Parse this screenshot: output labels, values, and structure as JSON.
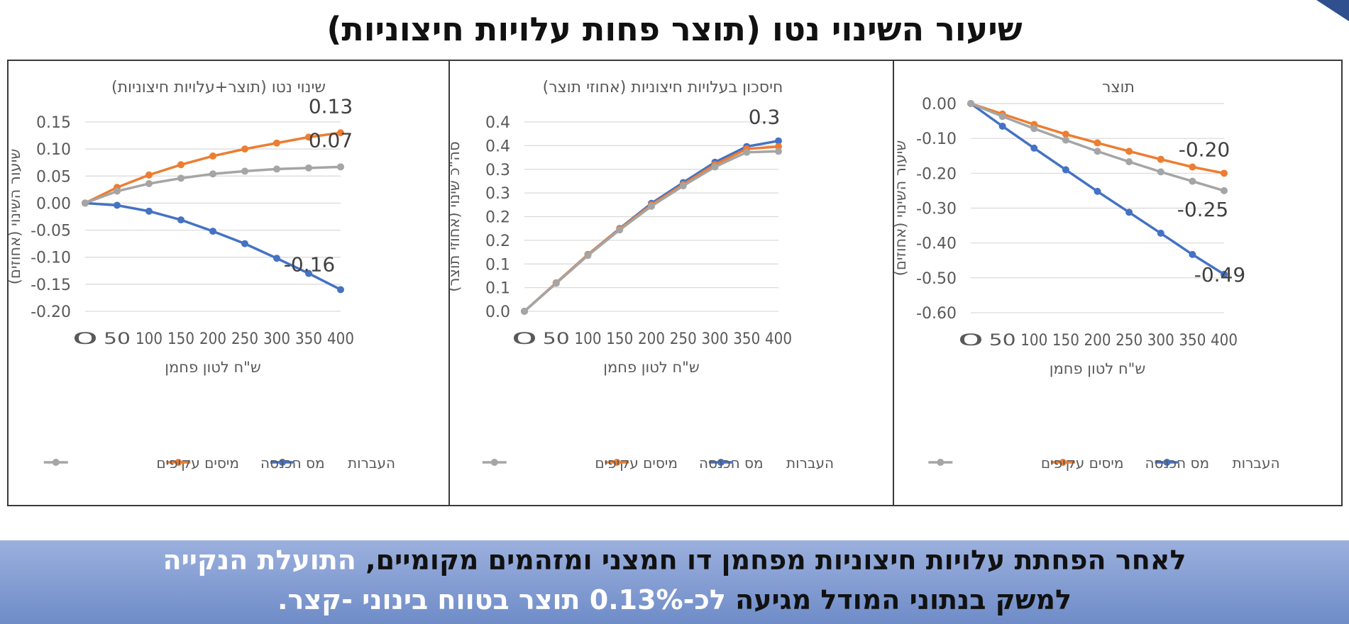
{
  "page_title": "שיעור השינוי נטו (תוצר פחות עלויות חיצוניות)",
  "colors": {
    "transfers": "#4472c4",
    "income_tax": "#ed7d31",
    "indirect_taxes": "#a5a5a5",
    "frame": "#3a3a3a",
    "banner": "#7f98cf"
  },
  "chart_data": [
    {
      "type": "line",
      "title": "תוצר",
      "xlabel": "ש\"ח לטון פחמן",
      "ylabel": "שיעור השינוי (אחוזים)",
      "x": [
        0,
        50,
        100,
        150,
        200,
        250,
        300,
        350,
        400
      ],
      "x_tick_labels": [
        "0",
        "50",
        "100",
        "150",
        "200",
        "250",
        "300",
        "350",
        "400"
      ],
      "ylim": [
        -0.6,
        0.0
      ],
      "y_ticks": [
        0.0,
        -0.1,
        -0.2,
        -0.3,
        -0.4,
        -0.5,
        -0.6
      ],
      "y_tick_labels": [
        "0.00",
        "-0.10",
        "-0.20",
        "-0.30",
        "-0.40",
        "-0.50",
        "-0.60"
      ],
      "grid": true,
      "legend_position": "bottom",
      "series": [
        {
          "name": "העברות",
          "values": [
            0,
            -0.065,
            -0.128,
            -0.19,
            -0.252,
            -0.312,
            -0.372,
            -0.433,
            -0.49
          ]
        },
        {
          "name": "מס הכנסה",
          "values": [
            0,
            -0.03,
            -0.06,
            -0.088,
            -0.113,
            -0.137,
            -0.16,
            -0.182,
            -0.2
          ]
        },
        {
          "name": "מיסים עקיפים",
          "values": [
            0,
            -0.037,
            -0.072,
            -0.105,
            -0.137,
            -0.167,
            -0.196,
            -0.223,
            -0.25
          ]
        }
      ],
      "data_labels": [
        "-0.20",
        "-0.25",
        "-0.49"
      ]
    },
    {
      "type": "line",
      "title": "חיסכון בעלויות חיצוניות (אחוזי תוצר)",
      "xlabel": "ש\"ח לטון פחמן",
      "ylabel": "סה\"כ שינוי (אחוזי תוצר)",
      "x": [
        0,
        50,
        100,
        150,
        200,
        250,
        300,
        350,
        400
      ],
      "x_tick_labels": [
        "0",
        "50",
        "100",
        "150",
        "200",
        "250",
        "300",
        "350",
        "400"
      ],
      "ylim": [
        0.0,
        0.4
      ],
      "y_ticks": [
        0.0,
        0.05,
        0.1,
        0.15,
        0.2,
        0.25,
        0.3,
        0.35,
        0.4
      ],
      "y_tick_labels": [
        "0.0",
        "0.1",
        "0.1",
        "0.2",
        "0.2",
        "0.3",
        "0.3",
        "0.4",
        "0.4"
      ],
      "grid": true,
      "legend_position": "bottom",
      "series": [
        {
          "name": "העברות",
          "values": [
            0,
            0.06,
            0.12,
            0.175,
            0.228,
            0.272,
            0.315,
            0.348,
            0.36
          ]
        },
        {
          "name": "מס הכנסה",
          "values": [
            0,
            0.06,
            0.12,
            0.174,
            0.225,
            0.268,
            0.31,
            0.343,
            0.348
          ]
        },
        {
          "name": "מיסים עקיפים",
          "values": [
            0,
            0.059,
            0.118,
            0.172,
            0.222,
            0.265,
            0.305,
            0.336,
            0.338
          ]
        }
      ],
      "data_labels": [
        "0.3"
      ]
    },
    {
      "type": "line",
      "title": "שינוי נטו (תוצר+עלויות חיצוניות)",
      "xlabel": "ש\"ח לטון פחמן",
      "ylabel": "שיעור השינוי (אחוזים)",
      "x": [
        0,
        50,
        100,
        150,
        200,
        250,
        300,
        350,
        400
      ],
      "x_tick_labels": [
        "0",
        "50",
        "100",
        "150",
        "200",
        "250",
        "300",
        "350",
        "400"
      ],
      "ylim": [
        -0.2,
        0.15
      ],
      "y_ticks": [
        0.15,
        0.1,
        0.05,
        0.0,
        -0.05,
        -0.1,
        -0.15,
        -0.2
      ],
      "y_tick_labels": [
        "0.15",
        "0.10",
        "0.05",
        "0.00",
        "-0.05",
        "-0.10",
        "-0.15",
        "-0.20"
      ],
      "grid": true,
      "legend_position": "bottom",
      "series": [
        {
          "name": "העברות",
          "values": [
            0,
            -0.004,
            -0.015,
            -0.031,
            -0.052,
            -0.075,
            -0.102,
            -0.13,
            -0.16
          ]
        },
        {
          "name": "מס הכנסה",
          "values": [
            0,
            0.029,
            0.052,
            0.071,
            0.087,
            0.1,
            0.111,
            0.122,
            0.13
          ]
        },
        {
          "name": "מיסים עקיפים",
          "values": [
            0,
            0.022,
            0.036,
            0.046,
            0.054,
            0.059,
            0.063,
            0.065,
            0.067
          ]
        }
      ],
      "data_labels": [
        "0.13",
        "0.07",
        "-0.16"
      ]
    }
  ],
  "banner": {
    "line1_part1": "לאחר הפחתת עלויות חיצוניות מפחמן דו חמצני ומזהמים מקומיים, ",
    "line1_part2": "התועלת הנקייה",
    "line2_part1": "למשק בנתוני המודל מגיעה ",
    "line2_part2": "לכ-0.13% תוצר בטווח בינוני -קצר."
  }
}
